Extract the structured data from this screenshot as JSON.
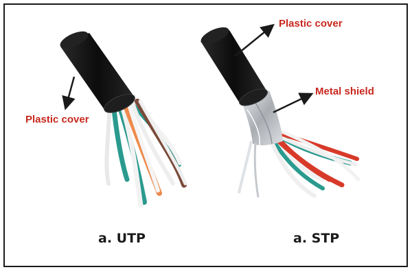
{
  "colors": {
    "label": "#c8281e",
    "caption": "#1a1a1a",
    "jacket": "#141414",
    "teal": "#2a9a8e",
    "orange": "#ee8a4c",
    "brown": "#7a4a3a",
    "red": "#d83a2a",
    "foil": "#c8ccd0"
  },
  "utp": {
    "label": "Plastic cover",
    "caption": "a. UTP"
  },
  "stp": {
    "label_cover": "Plastic cover",
    "label_shield": "Metal shield",
    "caption": "a. STP"
  }
}
